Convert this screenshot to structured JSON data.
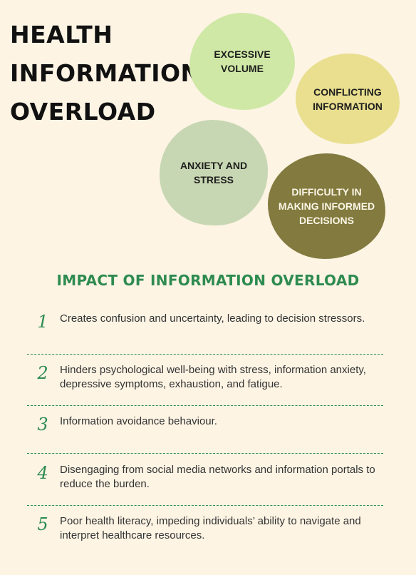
{
  "title": {
    "line1": "HEALTH",
    "line2": "INFORMATION",
    "line3": "OVERLOAD"
  },
  "circles": [
    {
      "label": "EXCESSIVE\nVOLUME",
      "color": "#cfe8a6"
    },
    {
      "label": "CONFLICTING\nINFORMATION",
      "color": "#e9df8f"
    },
    {
      "label": "ANXIETY AND\nSTRESS",
      "color": "#c8d7b3"
    },
    {
      "label": "DIFFICULTY IN\nMAKING INFORMED\nDECISIONS",
      "color": "#827a3e"
    }
  ],
  "impact": {
    "heading": "IMPACT OF INFORMATION OVERLOAD",
    "items": [
      {
        "num": "1",
        "text": "Creates confusion and uncertainty, leading to decision stressors."
      },
      {
        "num": "2",
        "text": "Hinders psychological well-being with stress, information anxiety, depressive symptoms, exhaustion, and fatigue."
      },
      {
        "num": "3",
        "text": "Information avoidance behaviour."
      },
      {
        "num": "4",
        "text": "Disengaging from social media networks and information portals to reduce the burden."
      },
      {
        "num": "5",
        "text": "Poor health literacy, impeding individuals’ ability to navigate and interpret healthcare resources."
      }
    ]
  },
  "colors": {
    "background": "#fdf4e4",
    "accent": "#2e8b50",
    "text": "#333333"
  }
}
